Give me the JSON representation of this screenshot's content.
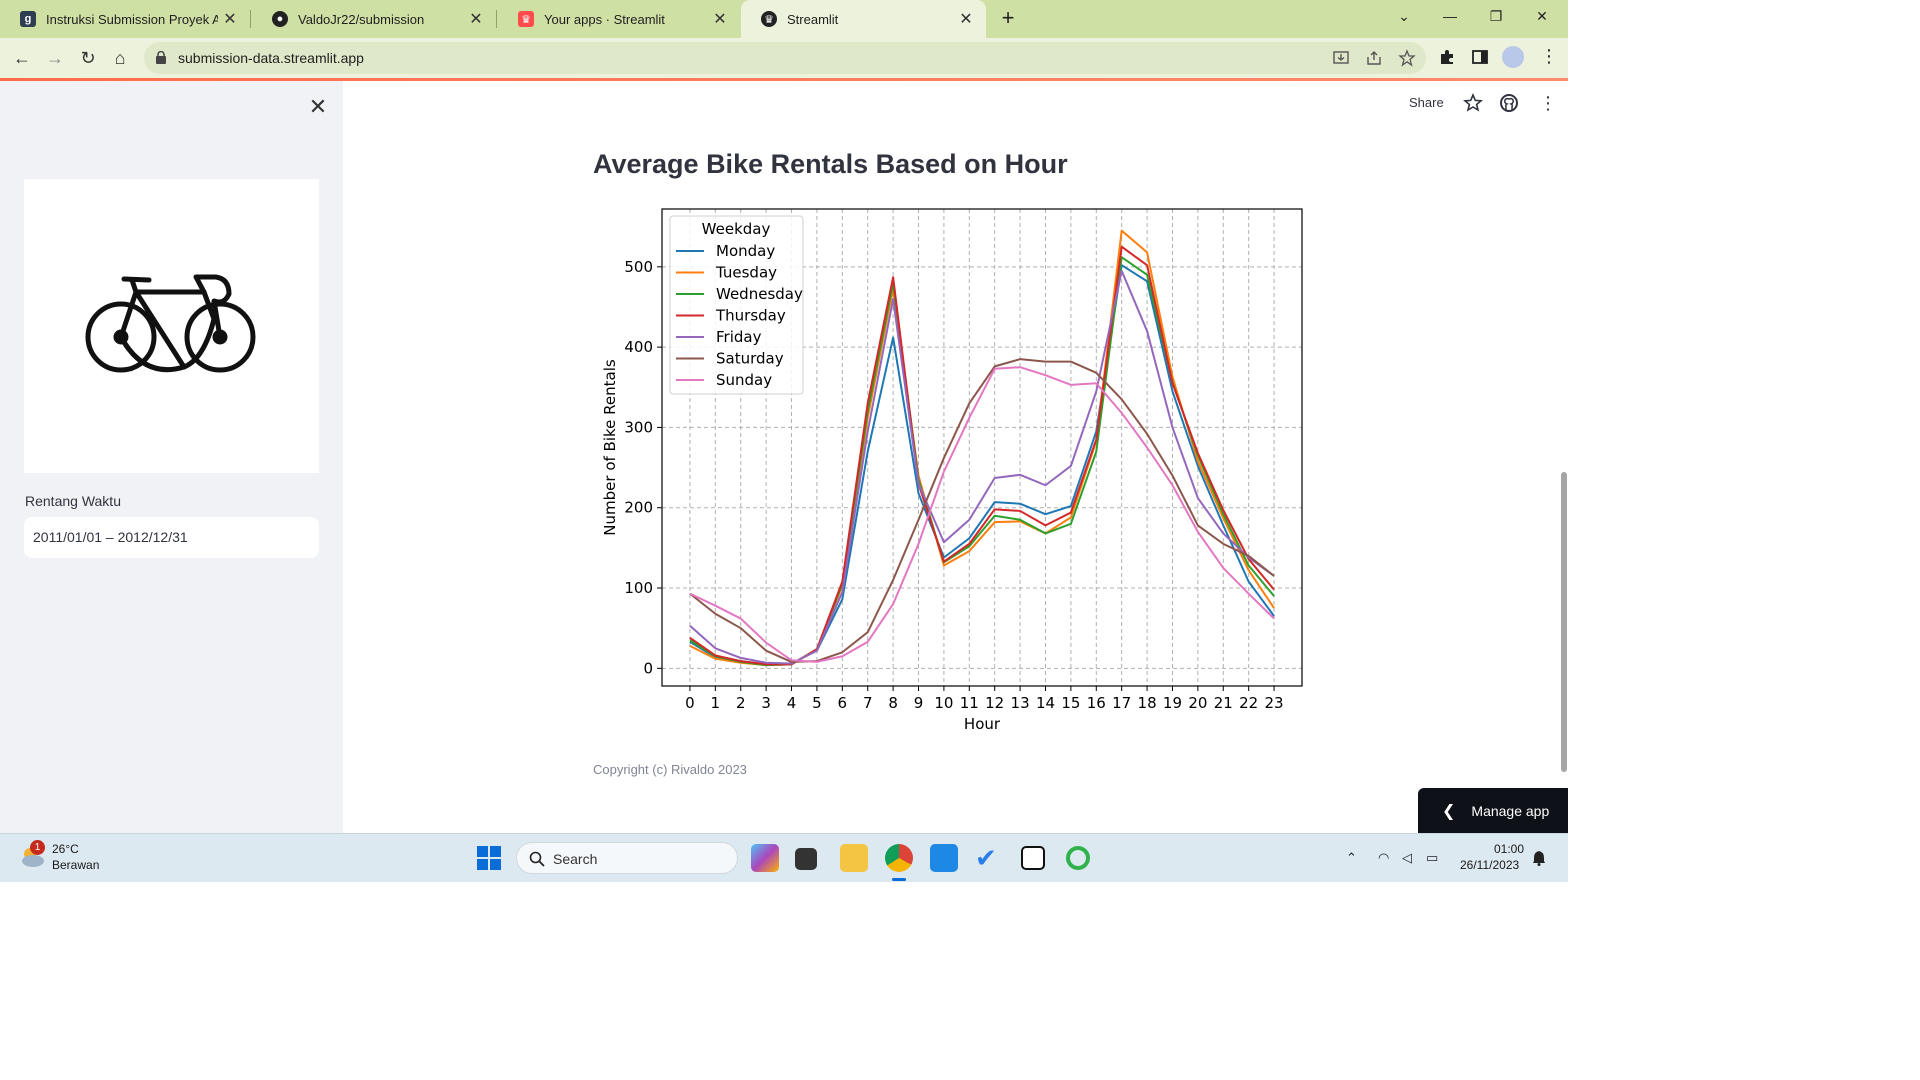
{
  "browser": {
    "tabs": [
      {
        "title": "Instruksi Submission Proyek Ana",
        "icon": "dicoding-icon"
      },
      {
        "title": "ValdoJr22/submission",
        "icon": "github-icon"
      },
      {
        "title": "Your apps · Streamlit",
        "icon": "streamlit-icon"
      },
      {
        "title": "Streamlit",
        "icon": "streamlit-icon"
      }
    ],
    "active_tab": 3,
    "url": "submission-data.streamlit.app"
  },
  "sidebar": {
    "logo": "bicycle-icon",
    "date_label": "Rentang Waktu",
    "date_value": "2011/01/01 – 2012/12/31"
  },
  "header": {
    "share_label": "Share"
  },
  "main": {
    "title": "Average Bike Rentals Based on Hour",
    "copyright": "Copyright (c) Rivaldo 2023"
  },
  "manage_app": {
    "label": "Manage app"
  },
  "taskbar": {
    "weather_temp": "26°C",
    "weather_cond": "Berawan",
    "weather_badge": "1",
    "search_placeholder": "Search",
    "time": "01:00",
    "date": "26/11/2023"
  },
  "chart_data": {
    "type": "line",
    "xlabel": "Hour",
    "ylabel": "Number of Bike Rentals",
    "legend_title": "Weekday",
    "legend_position": "top-left",
    "grid": true,
    "xlim": [
      -1.1,
      24.1
    ],
    "ylim": [
      -22,
      572
    ],
    "x": [
      0,
      1,
      2,
      3,
      4,
      5,
      6,
      7,
      8,
      9,
      10,
      11,
      12,
      13,
      14,
      15,
      16,
      17,
      18,
      19,
      20,
      21,
      22,
      23
    ],
    "yticks": [
      0,
      100,
      200,
      300,
      400,
      500
    ],
    "series": [
      {
        "name": "Monday",
        "color": "#1f77b4",
        "values": [
          33,
          14,
          9,
          5,
          6,
          22,
          86,
          270,
          412,
          218,
          138,
          162,
          207,
          205,
          192,
          202,
          295,
          502,
          482,
          345,
          252,
          178,
          108,
          65
        ]
      },
      {
        "name": "Tuesday",
        "color": "#ff7f0e",
        "values": [
          28,
          12,
          7,
          4,
          5,
          23,
          103,
          312,
          473,
          240,
          128,
          146,
          182,
          183,
          168,
          188,
          283,
          545,
          518,
          363,
          258,
          187,
          122,
          75
        ]
      },
      {
        "name": "Wednesday",
        "color": "#2ca02c",
        "values": [
          35,
          15,
          8,
          4,
          5,
          24,
          105,
          320,
          480,
          235,
          132,
          152,
          190,
          185,
          168,
          180,
          270,
          512,
          490,
          356,
          265,
          192,
          128,
          90
        ]
      },
      {
        "name": "Thursday",
        "color": "#d62728",
        "values": [
          38,
          16,
          9,
          5,
          5,
          24,
          108,
          330,
          487,
          230,
          133,
          155,
          198,
          196,
          178,
          194,
          285,
          525,
          502,
          355,
          268,
          197,
          136,
          98
        ]
      },
      {
        "name": "Friday",
        "color": "#9467bd",
        "values": [
          53,
          25,
          13,
          7,
          6,
          22,
          95,
          295,
          460,
          230,
          157,
          185,
          237,
          241,
          228,
          252,
          345,
          495,
          420,
          300,
          212,
          168,
          138,
          115
        ]
      },
      {
        "name": "Saturday",
        "color": "#8c564b",
        "values": [
          93,
          68,
          50,
          22,
          8,
          9,
          20,
          45,
          110,
          185,
          262,
          330,
          376,
          385,
          382,
          382,
          368,
          335,
          292,
          240,
          178,
          155,
          140,
          115
        ]
      },
      {
        "name": "Sunday",
        "color": "#e377c2",
        "values": [
          93,
          78,
          62,
          32,
          10,
          8,
          15,
          33,
          80,
          155,
          245,
          312,
          373,
          375,
          365,
          353,
          355,
          318,
          275,
          228,
          170,
          125,
          93,
          62
        ]
      }
    ]
  }
}
